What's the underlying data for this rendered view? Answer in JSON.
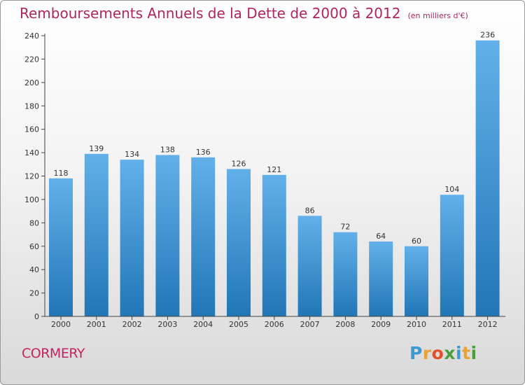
{
  "header": {
    "title": "Remboursements Annuels de la Dette de 2000 à 2012",
    "unit": "(en milliers d'€)"
  },
  "commune": "CORMERY",
  "logo": {
    "letters": [
      "P",
      "r",
      "o",
      "x",
      "i",
      "t",
      "i"
    ],
    "colors": [
      "#3b9ad6",
      "#e8a23a",
      "#e2502b",
      "#4a9e3d",
      "#3b9ad6",
      "#e8a23a",
      "#4a9e3d"
    ]
  },
  "colors": {
    "bar_light": "#62b0ea",
    "bar_dark": "#2276b6",
    "axis": "#444444",
    "grid": "#cccccc"
  },
  "chart_data": {
    "type": "bar",
    "title": "Remboursements Annuels de la Dette de 2000 à 2012",
    "subtitle": "(en milliers d'€)",
    "categories": [
      "2000",
      "2001",
      "2002",
      "2003",
      "2004",
      "2005",
      "2006",
      "2007",
      "2008",
      "2009",
      "2010",
      "2011",
      "2012"
    ],
    "values": [
      118,
      139,
      134,
      138,
      136,
      126,
      121,
      86,
      72,
      64,
      60,
      104,
      236
    ],
    "xlabel": "",
    "ylabel": "",
    "ylim": [
      0,
      240
    ],
    "yticks": [
      0,
      20,
      40,
      60,
      80,
      100,
      120,
      140,
      160,
      180,
      200,
      220,
      240
    ],
    "grid": false,
    "legend": "none"
  }
}
